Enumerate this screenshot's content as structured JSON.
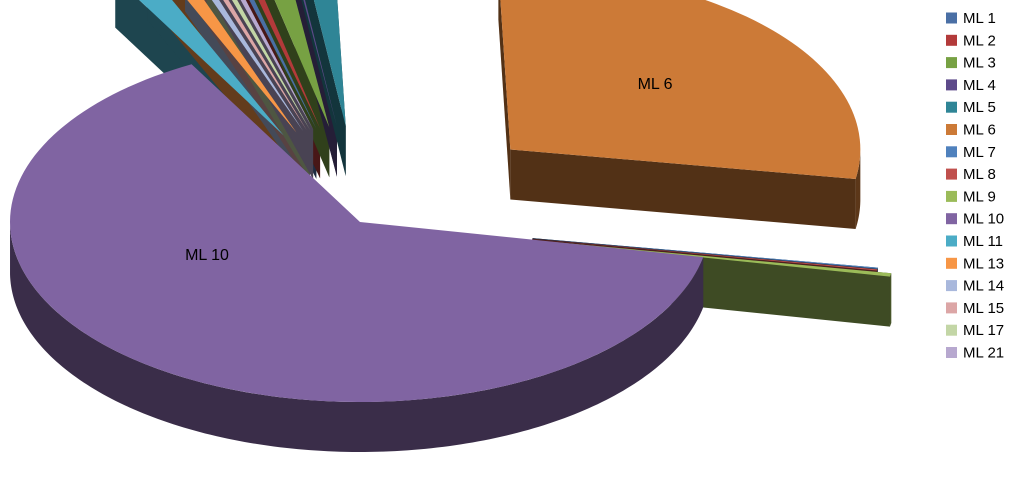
{
  "chart_data": {
    "type": "pie",
    "style": "3d-exploded",
    "title": "",
    "legend_position": "right",
    "labels_shown": [
      "ML 6",
      "ML 10"
    ],
    "series": [
      {
        "name": "ML 1",
        "value": 0.3,
        "color": "#4a6fa5"
      },
      {
        "name": "ML 2",
        "value": 0.4,
        "color": "#b33a3a"
      },
      {
        "name": "ML 3",
        "value": 1.3,
        "color": "#77a143"
      },
      {
        "name": "ML 4",
        "value": 0.1,
        "color": "#5d4a8a"
      },
      {
        "name": "ML 5",
        "value": 1.5,
        "color": "#2f8596"
      },
      {
        "name": "ML 6",
        "value": 28.0,
        "color": "#cc7a37"
      },
      {
        "name": "ML 7",
        "value": 0.1,
        "color": "#4f81bd"
      },
      {
        "name": "ML 8",
        "value": 0.1,
        "color": "#c0504d"
      },
      {
        "name": "ML 9",
        "value": 0.3,
        "color": "#9bbb59"
      },
      {
        "name": "ML 10",
        "value": 63.5,
        "color": "#8064a2"
      },
      {
        "name": "ML 11",
        "value": 1.6,
        "color": "#4bacc6"
      },
      {
        "name": "ML 13",
        "value": 0.9,
        "color": "#f79646"
      },
      {
        "name": "ML 14",
        "value": 0.4,
        "color": "#a9b8dc"
      },
      {
        "name": "ML 15",
        "value": 0.3,
        "color": "#dca6a6"
      },
      {
        "name": "ML 17",
        "value": 0.3,
        "color": "#c3d6a6"
      },
      {
        "name": "ML 21",
        "value": 0.3,
        "color": "#b7a8cf"
      }
    ]
  }
}
